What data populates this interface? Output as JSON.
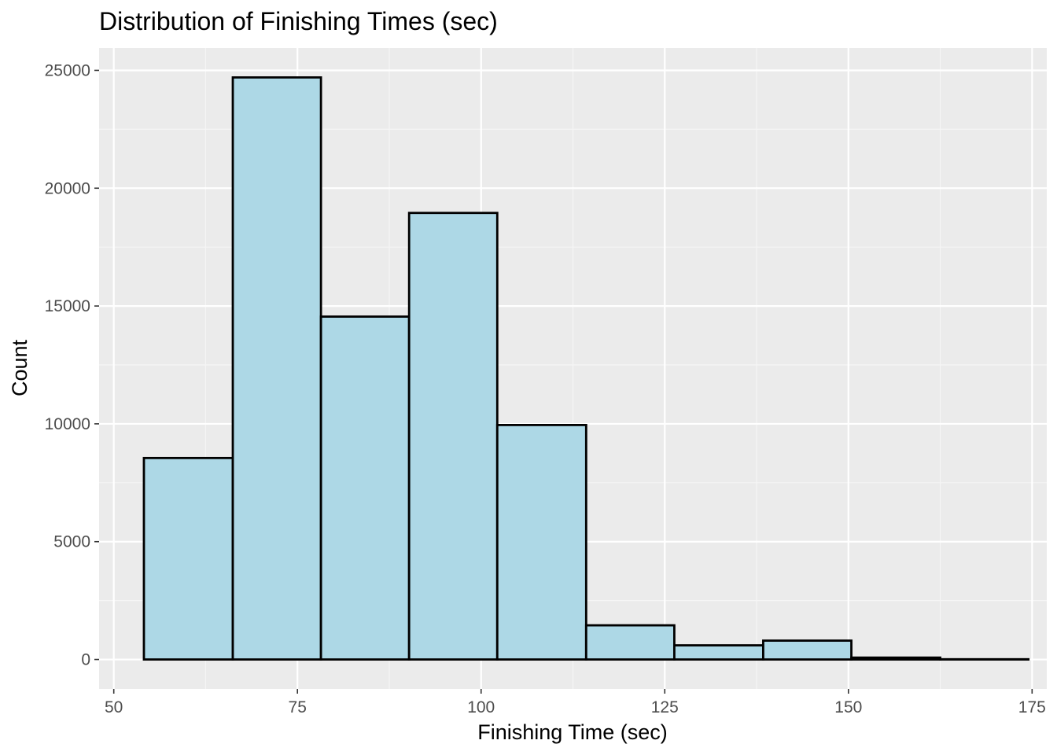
{
  "chart_data": {
    "type": "bar",
    "title": "Distribution of Finishing Times (sec)",
    "xlabel": "Finishing Time (sec)",
    "ylabel": "Count",
    "xlim": [
      48,
      177
    ],
    "ylim": [
      -1250,
      25950
    ],
    "x_ticks": [
      50,
      75,
      100,
      125,
      150,
      175
    ],
    "y_ticks": [
      0,
      5000,
      10000,
      15000,
      20000,
      25000
    ],
    "bins": [
      {
        "start": 54.1,
        "end": 66.2,
        "count": 8550
      },
      {
        "start": 66.2,
        "end": 78.2,
        "count": 24700
      },
      {
        "start": 78.2,
        "end": 90.2,
        "count": 14550
      },
      {
        "start": 90.2,
        "end": 102.2,
        "count": 18950
      },
      {
        "start": 102.2,
        "end": 114.3,
        "count": 9950
      },
      {
        "start": 114.3,
        "end": 126.3,
        "count": 1450
      },
      {
        "start": 126.3,
        "end": 138.4,
        "count": 600
      },
      {
        "start": 138.4,
        "end": 150.4,
        "count": 800
      },
      {
        "start": 150.4,
        "end": 162.5,
        "count": 80
      },
      {
        "start": 162.5,
        "end": 174.5,
        "count": 10
      }
    ],
    "grid": true,
    "colors": {
      "panel_background": "#ebebeb",
      "grid_major": "#ffffff",
      "grid_minor": "#f5f5f5",
      "bar_fill": "#add8e6",
      "bar_outline": "#000000",
      "tick_mark": "#333333"
    }
  }
}
